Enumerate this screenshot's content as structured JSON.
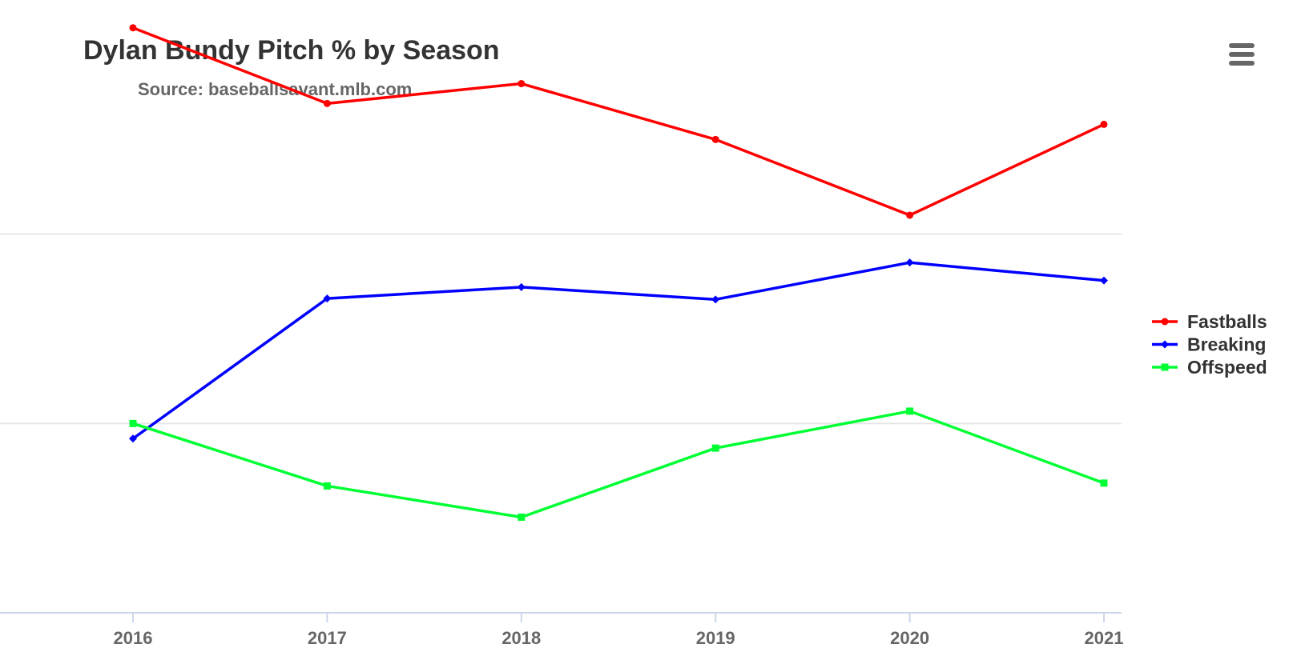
{
  "chart_data": {
    "type": "line",
    "title": "Dylan Bundy Pitch % by Season",
    "subtitle": "Source: baseballsavant.mlb.com",
    "xlabel": "",
    "ylabel": "",
    "categories": [
      "2016",
      "2017",
      "2018",
      "2019",
      "2020",
      "2021"
    ],
    "ylim": [
      0,
      60
    ],
    "gridlines": [
      20,
      40
    ],
    "grid": true,
    "legend_position": "right",
    "series": [
      {
        "name": "Fastballs",
        "color": "#ff0000",
        "marker": "circle",
        "values": [
          61.8,
          53.8,
          55.9,
          50.0,
          42.0,
          51.6
        ]
      },
      {
        "name": "Breaking",
        "color": "#0000ff",
        "marker": "diamond",
        "values": [
          18.4,
          33.2,
          34.4,
          33.1,
          37.0,
          35.1
        ]
      },
      {
        "name": "Offspeed",
        "color": "#00ff33",
        "marker": "square",
        "values": [
          20.0,
          13.4,
          10.1,
          17.4,
          21.3,
          13.7
        ]
      }
    ]
  },
  "ui": {
    "menu_icon": "hamburger-menu-icon",
    "grid_color": "#e6e6e6",
    "axis_color": "#ccd6eb",
    "title_color": "#333333",
    "subtitle_color": "#666666"
  }
}
